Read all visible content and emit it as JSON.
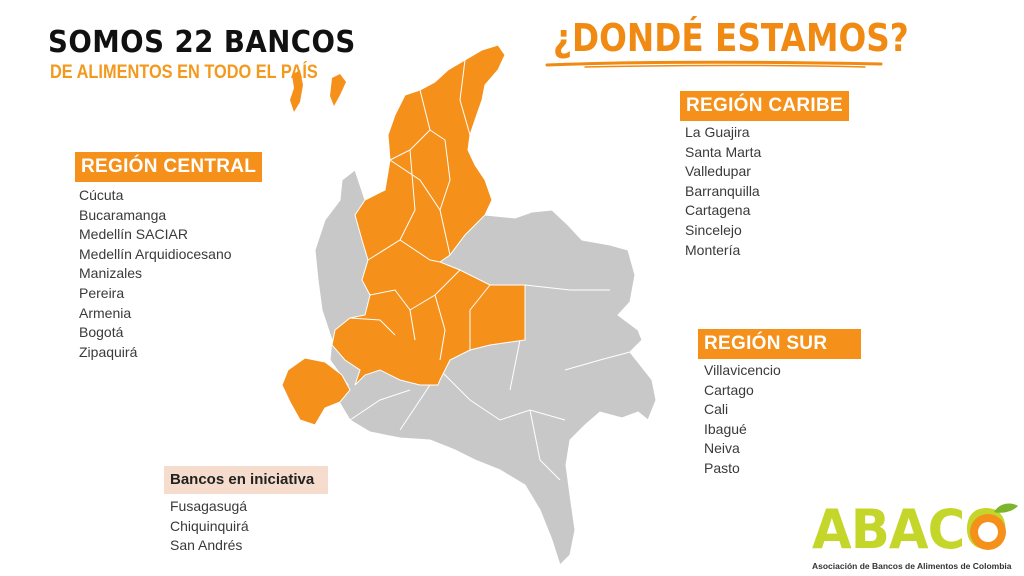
{
  "header": {
    "title": "SOMOS 22 BANCOS",
    "subtitle": "DE ALIMENTOS EN TODO EL PAÍS",
    "question": "¿DONDÉ ESTAMOS?"
  },
  "regions": {
    "central": {
      "label": "REGIÓN CENTRAL",
      "items": [
        "Cúcuta",
        "Bucaramanga",
        "Medellín SACIAR",
        "Medellín Arquidiocesano",
        "Manizales",
        "Pereira",
        "Armenia",
        "Bogotá",
        "Zipaquirá"
      ]
    },
    "caribe": {
      "label": "REGIÓN CARIBE",
      "items": [
        "La Guajira",
        "Santa Marta",
        "Valledupar",
        "Barranquilla",
        "Cartagena",
        "Sincelejo",
        "Montería"
      ]
    },
    "sur": {
      "label": "REGIÓN SUR",
      "items": [
        "Villavicencio",
        "Cartago",
        "Cali",
        "Ibagué",
        "Neiva",
        "Pasto"
      ]
    },
    "iniciativa": {
      "label": "Bancos en iniciativa",
      "items": [
        "Fusagasugá",
        "Chiquinquirá",
        "San Andrés"
      ]
    }
  },
  "logo": {
    "name": "ABACO",
    "caption": "Asociación de Bancos de Alimentos de Colombia"
  },
  "colors": {
    "highlight": "#f5901b",
    "map_gray": "#c8c8c8",
    "logo_green": "#c5d62a"
  }
}
